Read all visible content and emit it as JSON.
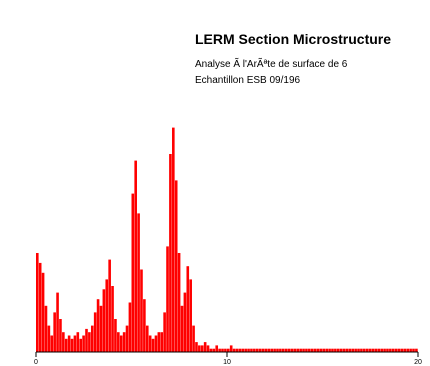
{
  "chart_data": {
    "type": "bar",
    "title": "LERM Section Microstructure",
    "subtitle_lines": [
      "Analyse Ã  l'ArÃªte de surface de 6",
      "Echantillon ESB 09/196"
    ],
    "xlabel": "",
    "ylabel": "",
    "xlim": [
      0,
      20
    ],
    "ylim": [
      0,
      1
    ],
    "y_ticks": [
      "",
      "",
      "",
      "",
      "",
      "",
      "",
      "",
      "",
      "",
      "",
      "",
      "",
      "",
      "",
      "",
      ""
    ],
    "x_ticks": [
      0,
      10,
      20
    ],
    "color": "#ff0000",
    "peak_labels": [
      "",
      "",
      "",
      "",
      "",
      "",
      ""
    ],
    "series": [
      {
        "values": [
          0.3,
          0.27,
          0.24,
          0.14,
          0.08,
          0.05,
          0.12,
          0.18,
          0.1,
          0.06,
          0.04,
          0.05,
          0.04,
          0.05,
          0.06,
          0.04,
          0.05,
          0.07,
          0.06,
          0.08,
          0.12,
          0.16,
          0.14,
          0.19,
          0.22,
          0.28,
          0.2,
          0.1,
          0.06,
          0.05,
          0.06,
          0.08,
          0.15,
          0.48,
          0.58,
          0.42,
          0.25,
          0.16,
          0.08,
          0.05,
          0.04,
          0.05,
          0.06,
          0.06,
          0.12,
          0.32,
          0.6,
          0.68,
          0.52,
          0.3,
          0.14,
          0.18,
          0.26,
          0.22,
          0.08,
          0.03,
          0.02,
          0.02,
          0.03,
          0.02,
          0.01,
          0.01,
          0.02,
          0.01,
          0.01,
          0.01,
          0.01,
          0.02,
          0.01,
          0.01,
          0.01,
          0.01,
          0.01,
          0.01,
          0.01,
          0.01,
          0.01,
          0.01,
          0.01,
          0.01,
          0.01,
          0.01,
          0.01,
          0.01,
          0.01,
          0.01,
          0.01,
          0.01,
          0.01,
          0.01,
          0.01,
          0.01,
          0.01,
          0.01,
          0.01,
          0.01,
          0.01,
          0.01,
          0.01,
          0.01,
          0.01,
          0.01,
          0.01,
          0.01,
          0.01,
          0.01,
          0.01,
          0.01,
          0.01,
          0.01,
          0.01,
          0.01,
          0.01,
          0.01,
          0.01,
          0.01,
          0.01,
          0.01,
          0.01,
          0.01,
          0.01,
          0.01,
          0.01,
          0.01,
          0.01,
          0.01,
          0.01,
          0.01,
          0.01,
          0.01,
          0.01,
          0.01
        ]
      }
    ]
  }
}
